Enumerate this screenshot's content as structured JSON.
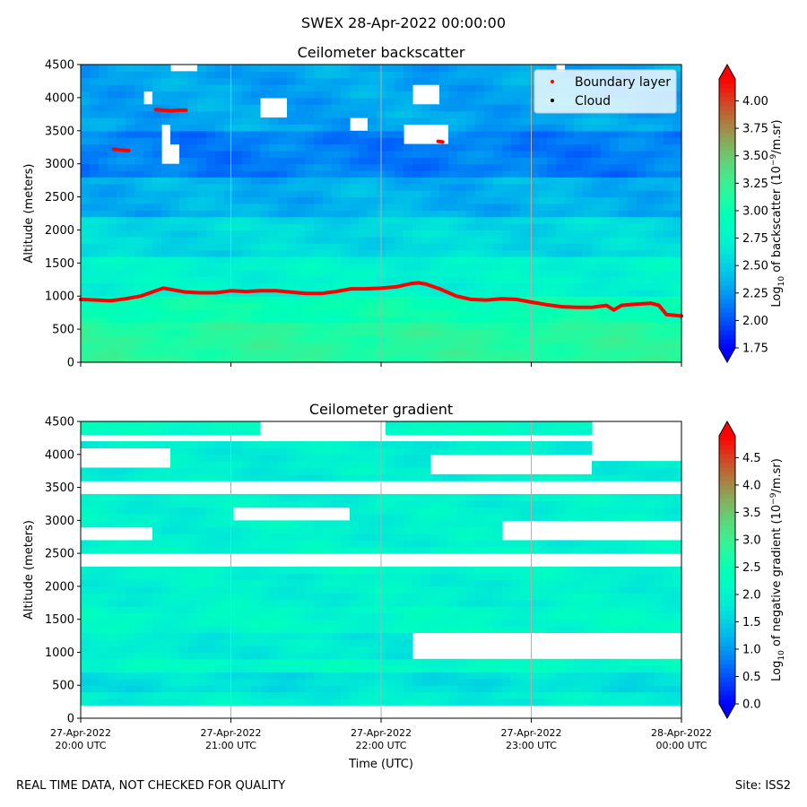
{
  "figure": {
    "suptitle": "SWEX 28-Apr-2022 00:00:00",
    "footer_left": "REAL TIME DATA, NOT CHECKED FOR QUALITY",
    "footer_right": "Site: ISS2"
  },
  "chart_data": [
    {
      "type": "heatmap",
      "title": "Ceilometer backscatter",
      "xlabel": "",
      "ylabel": "Altitude (meters)",
      "ylim": [
        0,
        4500
      ],
      "yticks": [
        0,
        500,
        1000,
        1500,
        2000,
        2500,
        3000,
        3500,
        4000,
        4500
      ],
      "xlim_hours": [
        0,
        4
      ],
      "xticks": [
        {
          "hour": 0,
          "date": "27-Apr-2022",
          "time": "20:00 UTC"
        },
        {
          "hour": 1,
          "date": "27-Apr-2022",
          "time": "21:00 UTC"
        },
        {
          "hour": 2,
          "date": "27-Apr-2022",
          "time": "22:00 UTC"
        },
        {
          "hour": 3,
          "date": "27-Apr-2022",
          "time": "23:00 UTC"
        },
        {
          "hour": 4,
          "date": "28-Apr-2022",
          "time": "00:00 UTC"
        }
      ],
      "grid_x": true,
      "colorbar": {
        "label_prefix": "Log",
        "label_sub": "10",
        "label_mid": " of backscatter (10",
        "label_sup": "−9",
        "label_suffix": "/m.sr)",
        "min": 1.75,
        "max": 4.2,
        "extend": "both",
        "ticks": [
          "1.75",
          "2.00",
          "2.25",
          "2.50",
          "2.75",
          "3.00",
          "3.25",
          "3.50",
          "3.75",
          "4.00"
        ]
      },
      "profile_bands": [
        {
          "alt_from": 0,
          "alt_to": 600,
          "value": 3.15
        },
        {
          "alt_from": 600,
          "alt_to": 1000,
          "value": 3.0
        },
        {
          "alt_from": 1000,
          "alt_to": 1600,
          "value": 2.75
        },
        {
          "alt_from": 1600,
          "alt_to": 2200,
          "value": 2.55
        },
        {
          "alt_from": 2200,
          "alt_to": 2800,
          "value": 2.35
        },
        {
          "alt_from": 2800,
          "alt_to": 3500,
          "value": 2.15
        },
        {
          "alt_from": 3500,
          "alt_to": 4500,
          "value": 2.3
        }
      ],
      "blank_regions": [
        {
          "t0": 0.52,
          "t1": 0.65,
          "a0": 3050,
          "a1": 3250
        },
        {
          "t0": 0.52,
          "t1": 0.62,
          "a0": 3350,
          "a1": 3550
        },
        {
          "t0": 0.42,
          "t1": 0.5,
          "a0": 3950,
          "a1": 4100
        },
        {
          "t0": 1.2,
          "t1": 1.4,
          "a0": 3700,
          "a1": 4000
        },
        {
          "t0": 1.8,
          "t1": 1.9,
          "a0": 3550,
          "a1": 3680
        },
        {
          "t0": 2.12,
          "t1": 2.45,
          "a0": 3300,
          "a1": 3600
        },
        {
          "t0": 2.22,
          "t1": 2.4,
          "a0": 3950,
          "a1": 4150
        },
        {
          "t0": 0.6,
          "t1": 0.75,
          "a0": 4380,
          "a1": 4500
        },
        {
          "t0": 3.15,
          "t1": 3.25,
          "a0": 4400,
          "a1": 4500
        }
      ],
      "legend": {
        "location": "top-right",
        "entries": [
          {
            "label": "Boundary layer",
            "color": "#ff0000"
          },
          {
            "label": "Cloud",
            "color": "#000000"
          }
        ]
      },
      "boundary_layer": {
        "name": "Boundary layer",
        "t": [
          0,
          0.1,
          0.2,
          0.3,
          0.4,
          0.5,
          0.55,
          0.6,
          0.7,
          0.8,
          0.9,
          1.0,
          1.1,
          1.2,
          1.3,
          1.4,
          1.5,
          1.6,
          1.7,
          1.8,
          1.9,
          2.0,
          2.1,
          2.2,
          2.25,
          2.3,
          2.4,
          2.5,
          2.6,
          2.7,
          2.8,
          2.9,
          3.0,
          3.1,
          3.2,
          3.3,
          3.4,
          3.5,
          3.55,
          3.6,
          3.7,
          3.8,
          3.85,
          3.9,
          4.0
        ],
        "alt": [
          950,
          940,
          930,
          960,
          1000,
          1080,
          1120,
          1100,
          1060,
          1050,
          1050,
          1080,
          1070,
          1080,
          1080,
          1060,
          1040,
          1040,
          1070,
          1110,
          1110,
          1120,
          1140,
          1190,
          1200,
          1180,
          1100,
          1000,
          950,
          940,
          960,
          950,
          910,
          870,
          840,
          830,
          830,
          860,
          790,
          860,
          880,
          890,
          860,
          720,
          700
        ]
      },
      "elevated_layers": [
        {
          "t": [
            0.22,
            0.26,
            0.3,
            0.32
          ],
          "alt": [
            3220,
            3210,
            3200,
            3200
          ]
        },
        {
          "t": [
            0.5,
            0.55,
            0.6,
            0.65,
            0.7
          ],
          "alt": [
            3820,
            3810,
            3800,
            3810,
            3810
          ]
        },
        {
          "t": [
            2.38,
            2.41
          ],
          "alt": [
            3340,
            3330
          ]
        }
      ]
    },
    {
      "type": "heatmap",
      "title": "Ceilometer gradient",
      "xlabel": "Time (UTC)",
      "ylabel": "Altitude (meters)",
      "ylim": [
        0,
        4500
      ],
      "yticks": [
        0,
        500,
        1000,
        1500,
        2000,
        2500,
        3000,
        3500,
        4000,
        4500
      ],
      "xlim_hours": [
        0,
        4
      ],
      "xticks": [
        {
          "hour": 0,
          "date": "27-Apr-2022",
          "time": "20:00 UTC"
        },
        {
          "hour": 1,
          "date": "27-Apr-2022",
          "time": "21:00 UTC"
        },
        {
          "hour": 2,
          "date": "27-Apr-2022",
          "time": "22:00 UTC"
        },
        {
          "hour": 3,
          "date": "27-Apr-2022",
          "time": "23:00 UTC"
        },
        {
          "hour": 4,
          "date": "28-Apr-2022",
          "time": "00:00 UTC"
        }
      ],
      "grid_x": true,
      "data_floor_alt": 170,
      "colorbar": {
        "label_prefix": "Log",
        "label_sub": "10",
        "label_mid": " of negative gradient (10",
        "label_sup": "−9",
        "label_suffix": "/m.sr)",
        "min": 0.0,
        "max": 4.9,
        "extend": "both",
        "ticks": [
          "0.0",
          "0.5",
          "1.0",
          "1.5",
          "2.0",
          "2.5",
          "3.0",
          "3.5",
          "4.0",
          "4.5"
        ]
      },
      "profile_bands": [
        {
          "alt_from": 170,
          "alt_to": 450,
          "value": 1.9
        },
        {
          "alt_from": 450,
          "alt_to": 700,
          "value": 1.7
        },
        {
          "alt_from": 700,
          "alt_to": 950,
          "value": 2.15
        },
        {
          "alt_from": 950,
          "alt_to": 1300,
          "value": 1.85
        },
        {
          "alt_from": 1300,
          "alt_to": 1700,
          "value": 2.1
        },
        {
          "alt_from": 1700,
          "alt_to": 2200,
          "value": 1.95
        },
        {
          "alt_from": 2200,
          "alt_to": 2650,
          "value": 2.05
        },
        {
          "alt_from": 2650,
          "alt_to": 3400,
          "value": 1.95
        },
        {
          "alt_from": 3400,
          "alt_to": 4200,
          "value": 1.9
        },
        {
          "alt_from": 4200,
          "alt_to": 4500,
          "value": 2.2
        }
      ],
      "blank_regions": [
        {
          "t0": 2.2,
          "t1": 4.0,
          "a0": 950,
          "a1": 1300
        },
        {
          "t0": 0.0,
          "t1": 4.0,
          "a0": 2280,
          "a1": 2520
        },
        {
          "t0": 0.0,
          "t1": 4.0,
          "a0": 3420,
          "a1": 3560
        },
        {
          "t0": 0.0,
          "t1": 4.0,
          "a0": 4200,
          "a1": 4320
        },
        {
          "t0": 0.0,
          "t1": 0.6,
          "a0": 3820,
          "a1": 4050
        },
        {
          "t0": 1.0,
          "t1": 1.8,
          "a0": 3000,
          "a1": 3200
        },
        {
          "t0": 2.8,
          "t1": 4.0,
          "a0": 2700,
          "a1": 3000
        },
        {
          "t0": 2.3,
          "t1": 3.4,
          "a0": 3700,
          "a1": 3950
        },
        {
          "t0": 1.2,
          "t1": 2.0,
          "a0": 4330,
          "a1": 4500
        },
        {
          "t0": 3.4,
          "t1": 4.0,
          "a0": 3950,
          "a1": 4500
        },
        {
          "t0": 0.0,
          "t1": 0.5,
          "a0": 2700,
          "a1": 2850
        }
      ]
    }
  ]
}
